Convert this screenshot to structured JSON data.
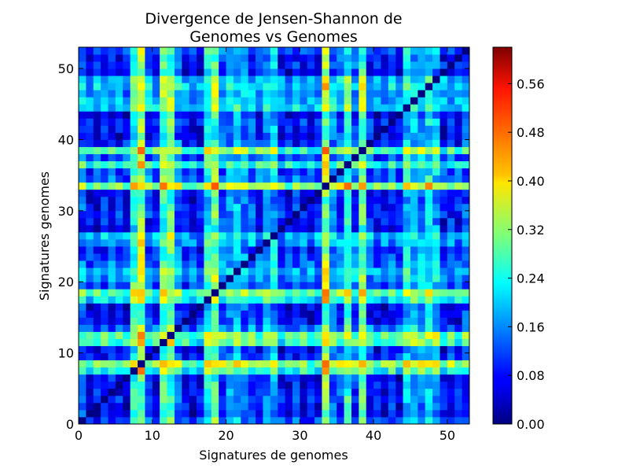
{
  "chart_data": {
    "type": "heatmap",
    "title": "Divergence de Jensen-Shannon de\nGenomes vs Genomes",
    "title_lines": [
      "Divergence de Jensen-Shannon de",
      "Genomes vs Genomes"
    ],
    "xlabel": "Signatures de genomes",
    "ylabel": "Signatures genomes",
    "n": 53,
    "xlim": [
      0,
      53
    ],
    "ylim": [
      0,
      53
    ],
    "xticks": [
      0,
      10,
      20,
      30,
      40,
      50
    ],
    "yticks": [
      0,
      10,
      20,
      30,
      40,
      50
    ],
    "colormap": "jet",
    "colorbar": {
      "vmin": 0.0,
      "vmax": 0.62,
      "ticks": [
        0.0,
        0.08,
        0.16,
        0.24,
        0.32,
        0.4,
        0.48,
        0.56
      ],
      "tick_labels": [
        "0.00",
        "0.08",
        "0.16",
        "0.24",
        "0.32",
        "0.40",
        "0.48",
        "0.56"
      ]
    },
    "diagonal_value": 0.0,
    "row_profile": [
      0.1,
      0.05,
      0.06,
      0.08,
      0.07,
      0.06,
      0.05,
      0.22,
      0.3,
      0.08,
      0.06,
      0.24,
      0.26,
      0.12,
      0.06,
      0.05,
      0.04,
      0.2,
      0.26,
      0.1,
      0.14,
      0.16,
      0.12,
      0.1,
      0.08,
      0.14,
      0.16,
      0.05,
      0.06,
      0.08,
      0.07,
      0.05,
      0.06,
      0.3,
      0.12,
      0.1,
      0.22,
      0.1,
      0.26,
      0.08,
      0.05,
      0.06,
      0.08,
      0.05,
      0.18,
      0.16,
      0.14,
      0.18,
      0.16,
      0.05,
      0.08,
      0.06,
      0.1
    ],
    "grid": false
  }
}
